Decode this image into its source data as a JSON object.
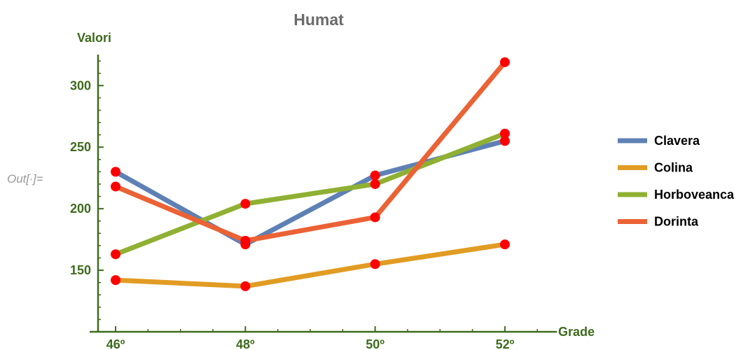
{
  "cell_label": "Out[∙]=",
  "chart_data": {
    "type": "line",
    "title": "Humat",
    "xlabel": "Grade",
    "ylabel": "Valori",
    "x": [
      46,
      48,
      50,
      52
    ],
    "x_tick_labels": [
      "46º",
      "48º",
      "50º",
      "52º"
    ],
    "y_ticks": [
      150,
      200,
      250,
      300
    ],
    "xlim": [
      45.6,
      52.8
    ],
    "ylim": [
      100,
      332
    ],
    "grid": false,
    "legend_position": "right",
    "point_color": "#ff0000",
    "axis_color": "#3d6b1c",
    "series": [
      {
        "name": "Clavera",
        "color": "#5e81b5",
        "values": [
          230,
          171,
          227,
          255
        ]
      },
      {
        "name": "Colina",
        "color": "#e19c24",
        "values": [
          142,
          137,
          155,
          171
        ]
      },
      {
        "name": "Horboveanca",
        "color": "#8fb032",
        "values": [
          163,
          204,
          220,
          261
        ]
      },
      {
        "name": "Dorinta",
        "color": "#eb6235",
        "values": [
          218,
          174,
          193,
          319
        ]
      }
    ]
  }
}
